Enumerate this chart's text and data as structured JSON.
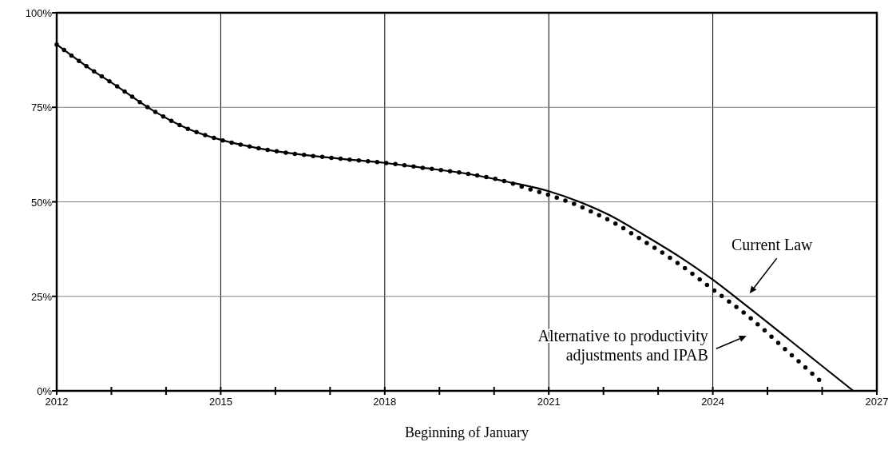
{
  "chart_data": {
    "type": "line",
    "xlabel": "Beginning of January",
    "xlim": [
      2012,
      2027
    ],
    "xticks": [
      2012,
      {
        "value": 2013,
        "label": null
      },
      {
        "value": 2014,
        "label": null
      },
      2015,
      {
        "value": 2016,
        "label": null
      },
      {
        "value": 2017,
        "label": null
      },
      2018,
      {
        "value": 2019,
        "label": null
      },
      {
        "value": 2020,
        "label": null
      },
      2021,
      {
        "value": 2022,
        "label": null
      },
      {
        "value": 2023,
        "label": null
      },
      2024,
      {
        "value": 2025,
        "label": null
      },
      {
        "value": 2026,
        "label": null
      },
      2027
    ],
    "ylim": [
      0,
      100
    ],
    "yticks": [
      {
        "value": 0,
        "label": "0%"
      },
      {
        "value": 25,
        "label": "25%"
      },
      {
        "value": 50,
        "label": "50%"
      },
      {
        "value": 75,
        "label": "75%"
      },
      {
        "value": 100,
        "label": "100%"
      }
    ],
    "grid": true,
    "series": [
      {
        "name": "Current Law",
        "color": "#000000",
        "line_style": "solid",
        "x": [
          2012,
          2012.59,
          2013.08,
          2013.71,
          2014.37,
          2015,
          2015.68,
          2016.41,
          2017.19,
          2018,
          2018.7,
          2019.48,
          2020.21,
          2021,
          2021.54,
          2022.12,
          2022.71,
          2023.4,
          2024,
          2024.44,
          2025.85,
          2026.57
        ],
        "values": [
          91.6,
          85.4,
          80.8,
          74.6,
          69.5,
          66.4,
          64.2,
          62.6,
          61.4,
          60.3,
          59.0,
          57.5,
          55.4,
          52.8,
          50.1,
          46.4,
          41.5,
          35.4,
          29.4,
          24.5,
          8.3,
          0
        ]
      },
      {
        "name": "Alternative to productivity adjustments and IPAB",
        "color": "#000000",
        "line_style": "dotted",
        "x": [
          2012,
          2012.59,
          2013.08,
          2013.71,
          2014.37,
          2015,
          2015.68,
          2016.41,
          2017.19,
          2018,
          2018.7,
          2019.48,
          2020.21,
          2020.55,
          2021.11,
          2021.47,
          2021.81,
          2022.15,
          2022.64,
          2023.29,
          2024.05,
          2024.66,
          2025.37,
          2026.05
        ],
        "values": [
          91.6,
          85.4,
          80.8,
          74.6,
          69.5,
          66.4,
          64.2,
          62.6,
          61.4,
          60.3,
          59.0,
          57.5,
          55.4,
          53.8,
          51.3,
          49.4,
          47.2,
          44.8,
          40.5,
          34.5,
          26.3,
          19.6,
          10.4,
          1.5
        ]
      }
    ]
  }
}
